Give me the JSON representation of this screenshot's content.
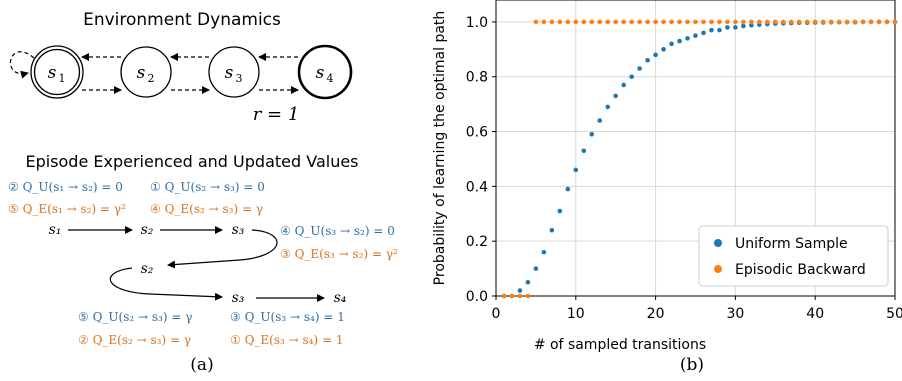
{
  "left_panel": {
    "title": "Environment Dynamics",
    "states": [
      {
        "id": "s1",
        "label": "s",
        "sub": "1"
      },
      {
        "id": "s2",
        "label": "s",
        "sub": "2"
      },
      {
        "id": "s3",
        "label": "s",
        "sub": "3"
      },
      {
        "id": "s4",
        "label": "s",
        "sub": "4"
      }
    ],
    "reward_label": "r = 1",
    "episode_title": "Episode Experienced and Updated Values",
    "updates": {
      "u2": "② Q_U(s₁ → s₂) = 0",
      "u1": "① Q_U(s₂ → s₃) = 0",
      "e5": "⑤ Q_E(s₁ → s₂) = γ²",
      "e4": "④ Q_E(s₂ → s₃) = γ",
      "u4": "④ Q_U(s₃ → s₂) = 0",
      "e3": "③ Q_E(s₃ → s₂) = γ²",
      "u5": "⑤ Q_U(s₂ → s₃) = γ",
      "u3": "③ Q_U(s₃ → s₄) = 1",
      "e2": "② Q_E(s₂ → s₃) = γ",
      "e1": "① Q_E(s₃ → s₄) = 1"
    },
    "episode_states": [
      "s₁",
      "s₂",
      "s₃",
      "s₂",
      "s₃",
      "s₄"
    ],
    "caption": "(a)"
  },
  "chart_data": {
    "type": "scatter",
    "xlabel": "# of sampled transitions",
    "ylabel": "Probability of learning the optimal path",
    "xlim": [
      0,
      50
    ],
    "ylim": [
      0,
      1.08
    ],
    "xticks": [
      "0",
      "10",
      "20",
      "30",
      "40",
      "50"
    ],
    "yticks": [
      "0.0",
      "0.2",
      "0.4",
      "0.6",
      "0.8",
      "1.0"
    ],
    "grid": true,
    "legend_position": "lower-right",
    "series": [
      {
        "name": "Uniform Sample",
        "color": "#1f77b4",
        "x": [
          1,
          2,
          3,
          4,
          5,
          6,
          7,
          8,
          9,
          10,
          11,
          12,
          13,
          14,
          15,
          16,
          17,
          18,
          19,
          20,
          21,
          22,
          23,
          24,
          25,
          26,
          27,
          28,
          29,
          30,
          31,
          32,
          33,
          34,
          35,
          36,
          37,
          38,
          39,
          40,
          41,
          42,
          43,
          44,
          45,
          46,
          47,
          48,
          49,
          50
        ],
        "y": [
          0.0,
          0.0,
          0.02,
          0.05,
          0.1,
          0.16,
          0.24,
          0.31,
          0.39,
          0.46,
          0.53,
          0.59,
          0.64,
          0.69,
          0.73,
          0.77,
          0.8,
          0.83,
          0.86,
          0.88,
          0.9,
          0.92,
          0.93,
          0.94,
          0.95,
          0.96,
          0.97,
          0.97,
          0.98,
          0.98,
          0.985,
          0.988,
          0.99,
          0.992,
          0.994,
          0.995,
          0.996,
          0.997,
          0.997,
          0.998,
          0.998,
          0.999,
          0.999,
          0.999,
          0.999,
          1.0,
          1.0,
          1.0,
          1.0,
          1.0
        ]
      },
      {
        "name": "Episodic Backward",
        "color": "#ff7f0e",
        "x": [
          1,
          2,
          3,
          4,
          5,
          6,
          7,
          8,
          9,
          10,
          11,
          12,
          13,
          14,
          15,
          16,
          17,
          18,
          19,
          20,
          21,
          22,
          23,
          24,
          25,
          26,
          27,
          28,
          29,
          30,
          31,
          32,
          33,
          34,
          35,
          36,
          37,
          38,
          39,
          40,
          41,
          42,
          43,
          44,
          45,
          46,
          47,
          48,
          49,
          50
        ],
        "y": [
          0.0,
          0.0,
          0.0,
          0.0,
          1.0,
          1.0,
          1.0,
          1.0,
          1.0,
          1.0,
          1.0,
          1.0,
          1.0,
          1.0,
          1.0,
          1.0,
          1.0,
          1.0,
          1.0,
          1.0,
          1.0,
          1.0,
          1.0,
          1.0,
          1.0,
          1.0,
          1.0,
          1.0,
          1.0,
          1.0,
          1.0,
          1.0,
          1.0,
          1.0,
          1.0,
          1.0,
          1.0,
          1.0,
          1.0,
          1.0,
          1.0,
          1.0,
          1.0,
          1.0,
          1.0,
          1.0,
          1.0,
          1.0,
          1.0,
          1.0
        ]
      }
    ],
    "caption": "(b)"
  }
}
